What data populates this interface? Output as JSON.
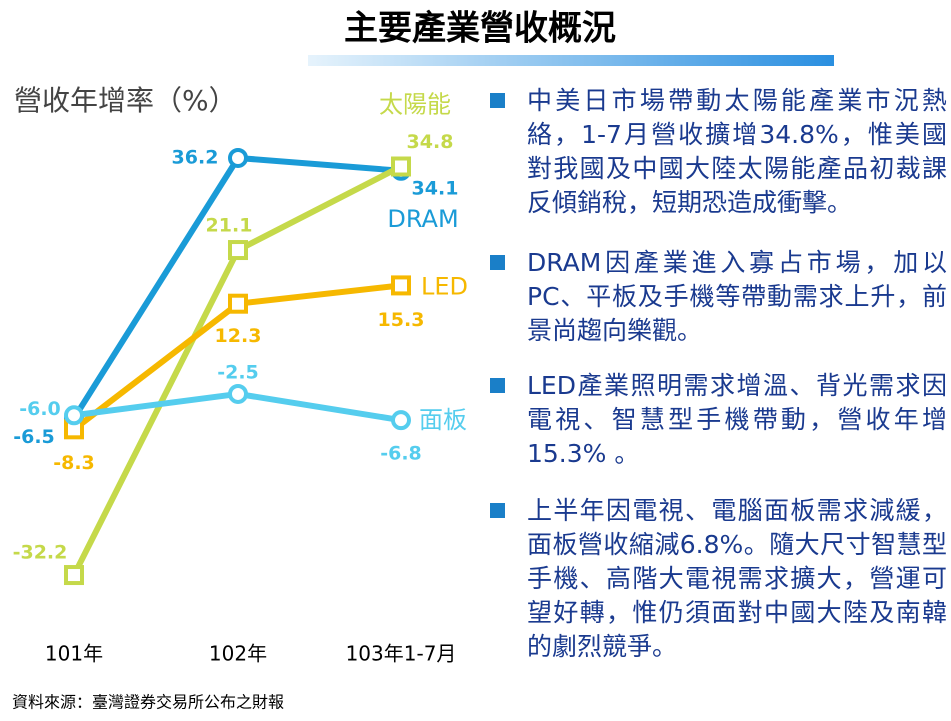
{
  "header": {
    "title": "主要產業營收概況"
  },
  "chart_data": {
    "type": "line",
    "y_label": "營收年增率（%）",
    "categories": [
      "101年",
      "102年",
      "103年1-7月"
    ],
    "ylim": [
      -40,
      40
    ],
    "series": [
      {
        "name": "DRAM",
        "color": "#1a9bd7",
        "marker": "circle",
        "values": [
          -6.5,
          36.2,
          34.1
        ],
        "value_labels": [
          "-6.5",
          "36.2",
          "34.1"
        ]
      },
      {
        "name": "太陽能",
        "color": "#c5d94a",
        "marker": "square",
        "values": [
          -32.2,
          21.1,
          34.8
        ],
        "value_labels": [
          "-32.2",
          "21.1",
          "34.8"
        ]
      },
      {
        "name": "LED",
        "color": "#f6b800",
        "marker": "square",
        "values": [
          -8.3,
          12.3,
          15.3
        ],
        "value_labels": [
          "-8.3",
          "12.3",
          "15.3"
        ]
      },
      {
        "name": "面板",
        "color": "#55cdee",
        "marker": "circle",
        "values": [
          -6.0,
          -2.5,
          -6.8
        ],
        "value_labels": [
          "-6.0",
          "-2.5",
          "-6.8"
        ]
      }
    ]
  },
  "bullets": [
    "中美日市場帶動太陽能產業市況熱絡，1-7月營收擴增34.8%，惟美國對我國及中國大陸太陽能產品初裁課反傾銷稅，短期恐造成衝擊。",
    "DRAM因產業進入寡占市場，加以PC、平板及手機等帶動需求上升，前景尚趨向樂觀。",
    "LED產業照明需求增溫、背光需求因電視、智慧型手機帶動，營收年增15.3% 。",
    "上半年因電視、電腦面板需求減緩，面板營收縮減6.8%。隨大尺寸智慧型手機、高階大電視需求擴大，營運可望好轉，惟仍須面對中國大陸及南韓的劇烈競爭。"
  ],
  "source": "資料來源：臺灣證券交易所公布之財報"
}
